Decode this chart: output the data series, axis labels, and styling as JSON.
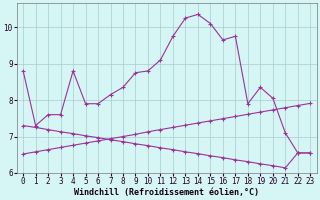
{
  "xlabel": "Windchill (Refroidissement éolien,°C)",
  "bg_color": "#d6f5f5",
  "line_color": "#993399",
  "grid_color": "#aacccc",
  "x": [
    0,
    1,
    2,
    3,
    4,
    5,
    6,
    7,
    8,
    9,
    10,
    11,
    12,
    13,
    14,
    15,
    16,
    17,
    18,
    19,
    20,
    21,
    22,
    23
  ],
  "curve_main": [
    8.8,
    7.3,
    7.6,
    7.6,
    8.8,
    7.9,
    7.9,
    8.15,
    8.35,
    8.75,
    8.8,
    9.1,
    9.75,
    10.25,
    10.35,
    10.1,
    9.65,
    9.75,
    7.9,
    8.35,
    8.05,
    7.1,
    6.55,
    6.55
  ],
  "line_up_x": [
    0,
    1,
    2,
    3,
    4,
    5,
    6,
    7,
    8,
    9,
    10,
    11,
    12,
    13,
    14,
    15,
    16,
    17,
    18,
    19,
    20,
    21,
    22,
    23
  ],
  "line_up_y": [
    6.52,
    6.58,
    6.64,
    6.7,
    6.76,
    6.82,
    6.88,
    6.94,
    7.0,
    7.06,
    7.13,
    7.19,
    7.25,
    7.31,
    7.37,
    7.43,
    7.49,
    7.55,
    7.61,
    7.67,
    7.73,
    7.79,
    7.85,
    7.91
  ],
  "line_down_x": [
    0,
    1,
    2,
    3,
    4,
    5,
    6,
    7,
    8,
    9,
    10,
    11,
    12,
    13,
    14,
    15,
    16,
    17,
    18,
    19,
    20,
    21,
    22,
    23
  ],
  "line_down_y": [
    7.3,
    7.25,
    7.19,
    7.13,
    7.08,
    7.02,
    6.97,
    6.91,
    6.86,
    6.8,
    6.75,
    6.69,
    6.64,
    6.58,
    6.53,
    6.47,
    6.42,
    6.36,
    6.31,
    6.25,
    6.2,
    6.14,
    6.55,
    6.55
  ],
  "xlim": [
    -0.5,
    23.5
  ],
  "ylim": [
    6.0,
    10.65
  ],
  "yticks": [
    6,
    7,
    8,
    9,
    10
  ],
  "xticks": [
    0,
    1,
    2,
    3,
    4,
    5,
    6,
    7,
    8,
    9,
    10,
    11,
    12,
    13,
    14,
    15,
    16,
    17,
    18,
    19,
    20,
    21,
    22,
    23
  ],
  "tick_fontsize": 5.5,
  "xlabel_fontsize": 6.0
}
